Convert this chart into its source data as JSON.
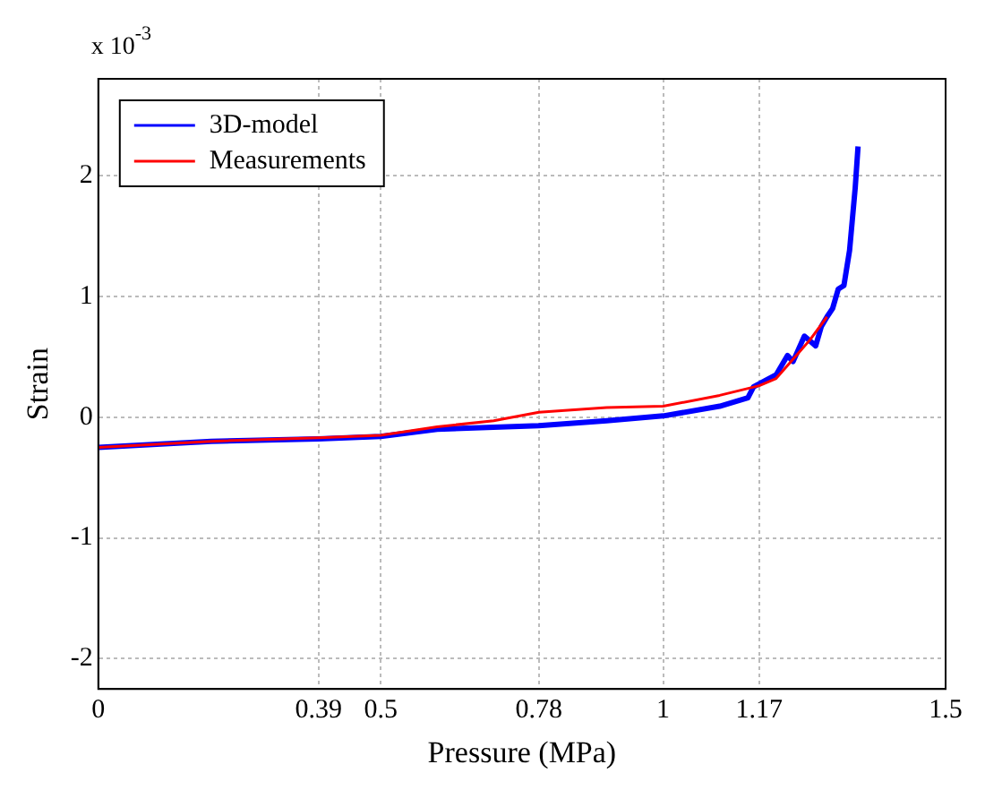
{
  "chart_data": {
    "type": "line",
    "xlabel": "Pressure (MPa)",
    "ylabel": "Strain",
    "annotations": [
      "x 10$^{-3}$"
    ],
    "xlim": [
      0,
      1.5
    ],
    "xticks": [
      0,
      0.39,
      0.5,
      0.78,
      1,
      1.17,
      1.5
    ],
    "ylim": [
      -2.25,
      2.8
    ],
    "yticks": [
      -2,
      -1,
      0,
      1,
      2
    ],
    "grid": true,
    "legend": "top left",
    "marker": "none",
    "line_style": "solid",
    "series": [
      {
        "name": "3D-model",
        "color": "#0000ff",
        "x": [
          0,
          0.2,
          0.39,
          0.5,
          0.6,
          0.78,
          0.9,
          1.0,
          1.1,
          1.15,
          1.16,
          1.18,
          1.2,
          1.22,
          1.23,
          1.25,
          1.27,
          1.28,
          1.29,
          1.3,
          1.31,
          1.32,
          1.33,
          1.34,
          1.345
        ],
        "values": [
          -0.25,
          -0.2,
          -0.18,
          -0.16,
          -0.1,
          -0.07,
          -0.03,
          0.01,
          0.09,
          0.16,
          0.25,
          0.3,
          0.35,
          0.51,
          0.46,
          0.67,
          0.59,
          0.75,
          0.83,
          0.9,
          1.06,
          1.09,
          1.38,
          1.9,
          2.24
        ]
      },
      {
        "name": "Measurements",
        "color": "#ff0000",
        "x": [
          0,
          0.2,
          0.39,
          0.5,
          0.6,
          0.7,
          0.78,
          0.9,
          1.0,
          1.1,
          1.17,
          1.2,
          1.23,
          1.26,
          1.29
        ],
        "values": [
          -0.25,
          -0.2,
          -0.17,
          -0.15,
          -0.08,
          -0.03,
          0.04,
          0.08,
          0.09,
          0.18,
          0.26,
          0.32,
          0.48,
          0.64,
          0.83
        ]
      }
    ]
  }
}
